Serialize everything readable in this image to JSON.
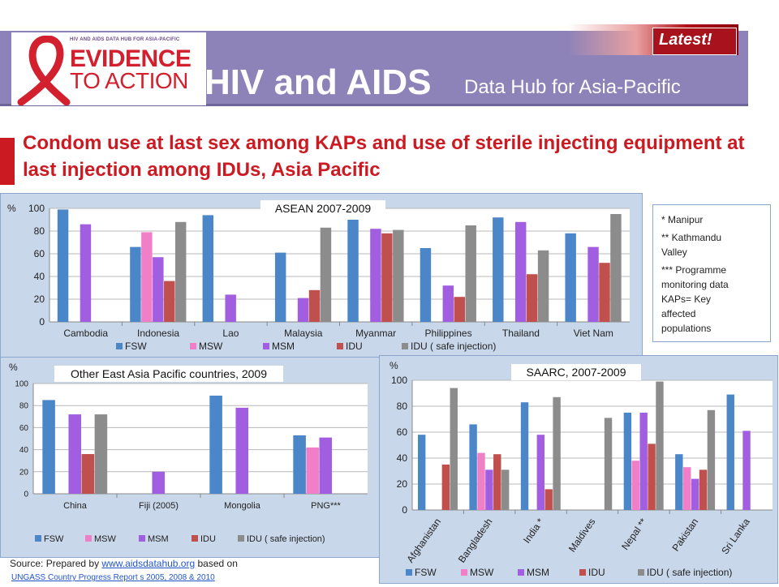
{
  "header": {
    "logo_small": "HIV AND AIDS DATA HUB FOR ASIA-PACIFIC",
    "logo_line1": "EVIDENCE",
    "logo_line2": "TO ACTION",
    "title": "HIV and AIDS",
    "subtitle": "Data Hub for Asia-Pacific",
    "latest": "Latest!"
  },
  "main_title": "Condom use at last sex among KAPs and use of sterile injecting equipment at last injection among IDUs, Asia Pacific",
  "notes": [
    "* Manipur",
    "** Kathmandu",
    "Valley",
    "*** Programme",
    "monitoring data",
    "KAPs= Key",
    "affected",
    "populations"
  ],
  "source": {
    "prefix": "Source: Prepared by ",
    "link": "www.aidsdatahub.org",
    "suffix": " based on",
    "line2": "UNGASS Country Progress Report s 2005, 2008 & 2010"
  },
  "colors": {
    "FSW": "#4a86c8",
    "MSW": "#f07fc8",
    "MSM": "#a25ee0",
    "IDU": "#c0504d",
    "IDU_safe": "#8c8c8c"
  },
  "chart_data": [
    {
      "type": "bar",
      "title": "ASEAN 2007-2009",
      "ylabel": "%",
      "ylim": [
        0,
        100
      ],
      "yticks": [
        0,
        20,
        40,
        60,
        80,
        100
      ],
      "categories": [
        "Cambodia",
        "Indonesia",
        "Lao",
        "Malaysia",
        "Myanmar",
        "Philippines",
        "Thailand",
        "Viet Nam"
      ],
      "series": [
        {
          "name": "FSW",
          "values": [
            99,
            66,
            94,
            61,
            90,
            65,
            92,
            78
          ]
        },
        {
          "name": "MSW",
          "values": [
            null,
            79,
            null,
            null,
            null,
            null,
            null,
            null
          ]
        },
        {
          "name": "MSM",
          "values": [
            86,
            57,
            24,
            21,
            82,
            32,
            88,
            66
          ]
        },
        {
          "name": "IDU",
          "values": [
            null,
            36,
            null,
            28,
            78,
            22,
            42,
            52
          ]
        },
        {
          "name": "IDU ( safe injection)",
          "values": [
            null,
            88,
            null,
            83,
            81,
            85,
            63,
            95
          ]
        }
      ],
      "legend": "bottom"
    },
    {
      "type": "bar",
      "title": "Other East Asia Pacific countries, 2009",
      "ylabel": "%",
      "ylim": [
        0,
        100
      ],
      "yticks": [
        0,
        20,
        40,
        60,
        80,
        100
      ],
      "categories": [
        "China",
        "Fiji (2005)",
        "Mongolia",
        "PNG***"
      ],
      "series": [
        {
          "name": "FSW",
          "values": [
            85,
            null,
            89,
            53
          ]
        },
        {
          "name": "MSW",
          "values": [
            null,
            null,
            null,
            42
          ]
        },
        {
          "name": "MSM",
          "values": [
            72,
            20,
            78,
            51
          ]
        },
        {
          "name": "IDU",
          "values": [
            36,
            null,
            null,
            null
          ]
        },
        {
          "name": "IDU ( safe injection)",
          "values": [
            72,
            null,
            null,
            null
          ]
        }
      ],
      "legend": "bottom"
    },
    {
      "type": "bar",
      "title": "SAARC, 2007-2009",
      "ylabel": "%",
      "ylim": [
        0,
        100
      ],
      "yticks": [
        0,
        20,
        40,
        60,
        80,
        100
      ],
      "categories": [
        "Afghanistan",
        "Bangladesh",
        "India *",
        "Maldives",
        "Nepal **",
        "Pakistan",
        "Sri Lanka"
      ],
      "series": [
        {
          "name": "FSW",
          "values": [
            58,
            66,
            83,
            null,
            75,
            43,
            89
          ]
        },
        {
          "name": "MSW",
          "values": [
            null,
            44,
            null,
            null,
            38,
            33,
            null
          ]
        },
        {
          "name": "MSM",
          "values": [
            null,
            31,
            58,
            null,
            75,
            24,
            61
          ]
        },
        {
          "name": "IDU",
          "values": [
            35,
            43,
            16,
            null,
            51,
            31,
            null
          ]
        },
        {
          "name": "IDU ( safe injection)",
          "values": [
            94,
            31,
            87,
            71,
            99,
            77,
            null
          ]
        }
      ],
      "legend": "bottom"
    }
  ]
}
